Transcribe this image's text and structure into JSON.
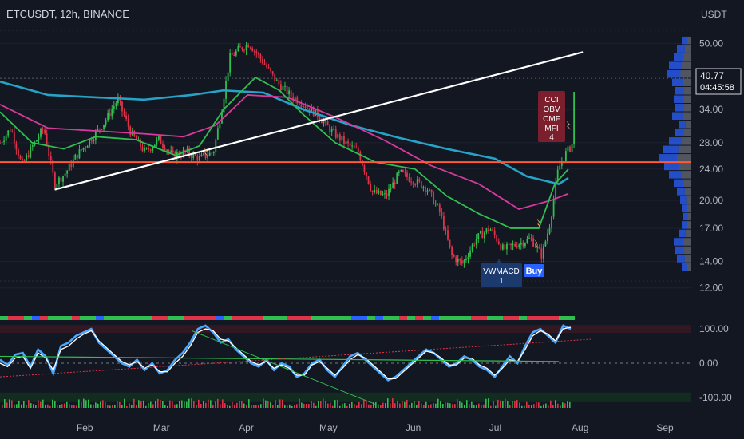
{
  "header": {
    "symbol_info": "ETCUSDT, 12h, BINANCE",
    "currency": "USDT"
  },
  "price_tag": {
    "price": "40.77",
    "countdown": "04:45:58"
  },
  "labels": {
    "signal_top": [
      "CCI",
      "OBV",
      "CMF",
      "MFI",
      "4"
    ],
    "signal_vwmacd": [
      "VWMACD",
      "1"
    ],
    "signal_buy": "Buy"
  },
  "colors": {
    "background": "#131722",
    "ma_teal": "#26a3c6",
    "ma_magenta": "#d63a9e",
    "ma_green": "#2fbf4f",
    "support_line": "#ff5a36",
    "trendline": "#ffffff",
    "up_candle": "#2fbf4f",
    "down_candle": "#e0334a"
  },
  "chart_data": [
    {
      "type": "candlestick",
      "x_axis_labels": [
        "Feb",
        "Mar",
        "Apr",
        "May",
        "Jun",
        "Jul",
        "Aug",
        "Sep"
      ],
      "y_axis_labels": [
        "50.00",
        "42.00",
        "34.00",
        "28.00",
        "24.00",
        "20.00",
        "17.00",
        "14.00",
        "12.00"
      ],
      "y_ticks": [
        50,
        42,
        34,
        28,
        24,
        20,
        17,
        14,
        12
      ],
      "y_scale": "log",
      "ylim": [
        11.6,
        56
      ],
      "last_price": 40.77,
      "horizontal_level": 25,
      "trendline": {
        "from": {
          "date": "Jan 21",
          "price": 21.3
        },
        "to": {
          "date": "Aug 02",
          "price": 47.5
        }
      },
      "close_path": [
        {
          "d": "Jan 01",
          "p": 28.0
        },
        {
          "d": "Jan 05",
          "p": 30.5
        },
        {
          "d": "Jan 09",
          "p": 24.5
        },
        {
          "d": "Jan 13",
          "p": 27.5
        },
        {
          "d": "Jan 17",
          "p": 30.5
        },
        {
          "d": "Jan 21",
          "p": 22.0
        },
        {
          "d": "Jan 25",
          "p": 23.5
        },
        {
          "d": "Jan 29",
          "p": 26.0
        },
        {
          "d": "Feb 03",
          "p": 28.5
        },
        {
          "d": "Feb 08",
          "p": 31.5
        },
        {
          "d": "Feb 13",
          "p": 36.0
        },
        {
          "d": "Feb 18",
          "p": 29.5
        },
        {
          "d": "Feb 23",
          "p": 26.5
        },
        {
          "d": "Feb 28",
          "p": 28.5
        },
        {
          "d": "Mar 05",
          "p": 26.0
        },
        {
          "d": "Mar 10",
          "p": 26.5
        },
        {
          "d": "Mar 15",
          "p": 25.5
        },
        {
          "d": "Mar 20",
          "p": 26.5
        },
        {
          "d": "Mar 23",
          "p": 34.0
        },
        {
          "d": "Mar 26",
          "p": 46.0
        },
        {
          "d": "Mar 29",
          "p": 48.0
        },
        {
          "d": "Apr 02",
          "p": 50.0
        },
        {
          "d": "Apr 07",
          "p": 45.0
        },
        {
          "d": "Apr 12",
          "p": 40.0
        },
        {
          "d": "Apr 17",
          "p": 37.0
        },
        {
          "d": "Apr 22",
          "p": 35.0
        },
        {
          "d": "Apr 27",
          "p": 33.0
        },
        {
          "d": "May 02",
          "p": 30.0
        },
        {
          "d": "May 07",
          "p": 28.0
        },
        {
          "d": "May 12",
          "p": 26.5
        },
        {
          "d": "May 17",
          "p": 21.0
        },
        {
          "d": "May 22",
          "p": 20.5
        },
        {
          "d": "May 27",
          "p": 23.5
        },
        {
          "d": "Jun 01",
          "p": 22.5
        },
        {
          "d": "Jun 06",
          "p": 21.5
        },
        {
          "d": "Jun 11",
          "p": 18.5
        },
        {
          "d": "Jun 15",
          "p": 14.5
        },
        {
          "d": "Jun 19",
          "p": 13.8
        },
        {
          "d": "Jun 24",
          "p": 16.0
        },
        {
          "d": "Jun 29",
          "p": 17.0
        },
        {
          "d": "Jul 04",
          "p": 15.0
        },
        {
          "d": "Jul 09",
          "p": 15.5
        },
        {
          "d": "Jul 14",
          "p": 16.0
        },
        {
          "d": "Jul 18",
          "p": 14.5
        },
        {
          "d": "Jul 21",
          "p": 17.5
        },
        {
          "d": "Jul 24",
          "p": 24.0
        },
        {
          "d": "Jul 27",
          "p": 26.5
        },
        {
          "d": "Jul 29",
          "p": 27.5
        },
        {
          "d": "Jul 30",
          "p": 40.77
        }
      ],
      "moving_averages": [
        {
          "color": "#26a3c6",
          "points": [
            [
              0,
              40.0
            ],
            [
              60,
              37.0
            ],
            [
              120,
              36.5
            ],
            [
              180,
              36.0
            ],
            [
              240,
              37.0
            ],
            [
              280,
              38.0
            ],
            [
              330,
              37.5
            ],
            [
              380,
              34.0
            ],
            [
              440,
              31.0
            ],
            [
              500,
              28.8
            ],
            [
              560,
              27.0
            ],
            [
              620,
              25.5
            ],
            [
              660,
              23.0
            ],
            [
              700,
              22.0
            ],
            [
              712,
              22.8
            ]
          ]
        },
        {
          "color": "#d63a9e",
          "points": [
            [
              0,
              35.0
            ],
            [
              60,
              30.5
            ],
            [
              120,
              30.0
            ],
            [
              180,
              29.5
            ],
            [
              230,
              29.0
            ],
            [
              270,
              31.0
            ],
            [
              310,
              37.0
            ],
            [
              360,
              36.5
            ],
            [
              420,
              32.5
            ],
            [
              480,
              28.5
            ],
            [
              540,
              24.5
            ],
            [
              600,
              22.0
            ],
            [
              650,
              19.0
            ],
            [
              690,
              20.0
            ],
            [
              712,
              20.8
            ]
          ]
        },
        {
          "color": "#2fbf4f",
          "points": [
            [
              0,
              33.5
            ],
            [
              40,
              28.0
            ],
            [
              80,
              27.0
            ],
            [
              120,
              29.0
            ],
            [
              170,
              28.5
            ],
            [
              220,
              26.0
            ],
            [
              250,
              27.5
            ],
            [
              280,
              34.0
            ],
            [
              320,
              41.0
            ],
            [
              350,
              38.0
            ],
            [
              380,
              33.0
            ],
            [
              420,
              28.0
            ],
            [
              470,
              25.0
            ],
            [
              520,
              24.0
            ],
            [
              560,
              20.5
            ],
            [
              600,
              18.5
            ],
            [
              640,
              17.0
            ],
            [
              675,
              17.0
            ],
            [
              695,
              22.0
            ],
            [
              712,
              24.0
            ]
          ]
        }
      ],
      "volume_profile": [
        0.3,
        0.45,
        0.55,
        0.7,
        0.75,
        0.6,
        0.5,
        0.55,
        0.5,
        0.6,
        0.4,
        0.5,
        0.7,
        0.9,
        1.0,
        0.85,
        0.7,
        0.55,
        0.45,
        0.35,
        0.3,
        0.25,
        0.3,
        0.4,
        0.55,
        0.5,
        0.45,
        0.3
      ]
    },
    {
      "type": "oscillator",
      "y_axis_labels": [
        "100.00",
        "0.00",
        "-100.00"
      ],
      "y_ticks": [
        100,
        0,
        -100
      ],
      "ylim": [
        -140,
        140
      ],
      "series": [
        {
          "color": "#4aa8ff",
          "values": [
            10,
            -5,
            25,
            30,
            -10,
            40,
            20,
            -30,
            50,
            60,
            80,
            90,
            100,
            60,
            40,
            20,
            0,
            -10,
            10,
            -20,
            0,
            -30,
            -20,
            10,
            30,
            60,
            100,
            110,
            90,
            60,
            70,
            40,
            20,
            0,
            -10,
            10,
            -20,
            0,
            -10,
            -40,
            -30,
            0,
            10,
            -20,
            -40,
            -10,
            20,
            30,
            10,
            -10,
            -30,
            -50,
            -40,
            -20,
            0,
            20,
            40,
            30,
            10,
            -10,
            0,
            20,
            10,
            -10,
            -20,
            -40,
            -10,
            20,
            0,
            50,
            90,
            100,
            80,
            60,
            110,
            100
          ]
        },
        {
          "color": "#ffffff",
          "values": [
            0,
            -10,
            15,
            20,
            -15,
            30,
            15,
            -20,
            40,
            50,
            70,
            85,
            95,
            65,
            45,
            25,
            5,
            -5,
            5,
            -15,
            -5,
            -25,
            -25,
            0,
            20,
            50,
            90,
            100,
            95,
            70,
            65,
            45,
            25,
            5,
            -5,
            5,
            -15,
            -5,
            -15,
            -35,
            -35,
            -5,
            5,
            -15,
            -35,
            -15,
            10,
            25,
            15,
            -5,
            -25,
            -45,
            -45,
            -25,
            -5,
            15,
            35,
            30,
            15,
            -5,
            -5,
            15,
            15,
            -5,
            -15,
            -35,
            -15,
            10,
            5,
            40,
            80,
            95,
            85,
            65,
            100,
            105
          ]
        }
      ]
    }
  ]
}
